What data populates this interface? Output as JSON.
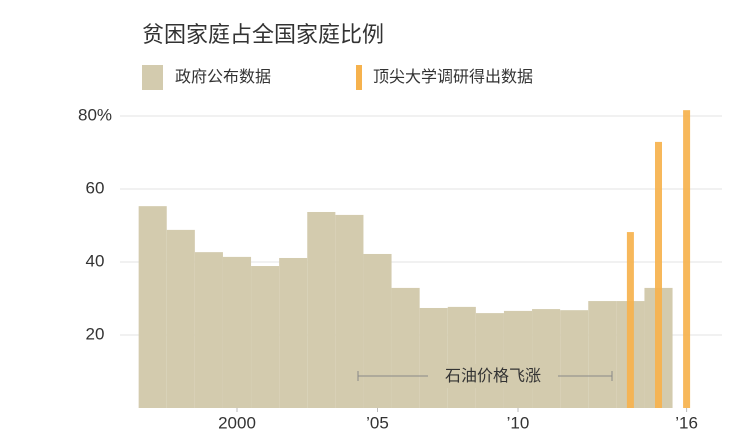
{
  "chart_data": {
    "type": "bar",
    "title": "贫困家庭占全国家庭比例",
    "series": [
      {
        "name": "政府公布数据",
        "color": "#d3cbae",
        "x": [
          1997,
          1998,
          1999,
          2000,
          2001,
          2002,
          2003,
          2004,
          2005,
          2006,
          2007,
          2008,
          2009,
          2010,
          2011,
          2012,
          2013,
          2014,
          2015
        ],
        "values": [
          55.3,
          48.8,
          42.7,
          41.4,
          38.9,
          41.1,
          53.7,
          52.9,
          42.2,
          32.9,
          27.4,
          27.7,
          26,
          26.6,
          27.1,
          26.8,
          29.3,
          29.3,
          32.9
        ]
      },
      {
        "name": "顶尖大学调研得出数据",
        "color": "#f6b24d",
        "x": [
          2014,
          2015,
          2016
        ],
        "values": [
          48.2,
          72.9,
          81.6
        ]
      }
    ],
    "xlim": [
      1996.5,
      2016.5
    ],
    "xticks": [
      2000,
      {
        "value": 2005,
        "label": "’05"
      },
      {
        "value": 2010,
        "label": "’10"
      },
      {
        "value": 2016,
        "label": "’16"
      }
    ],
    "ylim": [
      0,
      85
    ],
    "yticks": [
      20,
      40,
      60,
      {
        "value": 80,
        "label": "80%"
      }
    ],
    "grid": true,
    "annotations": [
      "石油价格飞涨"
    ]
  }
}
